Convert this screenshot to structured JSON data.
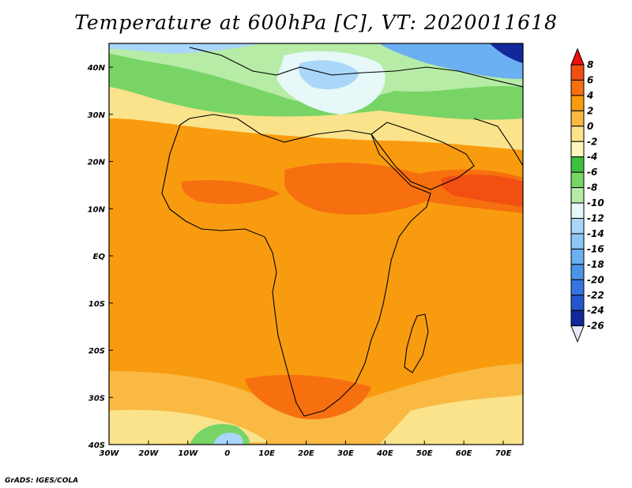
{
  "title": "Temperature at 600hPa [C], VT: 2020011618",
  "footer": "GrADS: IGES/COLA",
  "map": {
    "lon_labels": [
      "30W",
      "20W",
      "10W",
      "0",
      "10E",
      "20E",
      "30E",
      "40E",
      "50E",
      "60E",
      "70E"
    ],
    "lat_labels": [
      "40N",
      "30N",
      "20N",
      "10N",
      "EQ",
      "10S",
      "20S",
      "30S",
      "40S"
    ]
  },
  "colorbar": {
    "labels": [
      "8",
      "6",
      "4",
      "2",
      "0",
      "-2",
      "-4",
      "-6",
      "-8",
      "-10",
      "-12",
      "-14",
      "-16",
      "-18",
      "-20",
      "-22",
      "-24",
      "-26"
    ],
    "colors": [
      "#f00d0d",
      "#f24f12",
      "#f7700f",
      "#f99b0f",
      "#f9b943",
      "#fae38a",
      "#fdf7be",
      "#3fbf3f",
      "#79d466",
      "#b6eca6",
      "#e6f8f8",
      "#aad6fa",
      "#8ec6f7",
      "#6ab0f2",
      "#4c93ea",
      "#3674e0",
      "#2557cc",
      "#11279a",
      "#0c0c6e"
    ]
  },
  "colors": {
    "hot": "#f24f12",
    "warm": "#f99b0f",
    "mild": "#fae38a",
    "green": "#79d466",
    "cold": "#aad6fa",
    "coldest": "#2557cc"
  }
}
